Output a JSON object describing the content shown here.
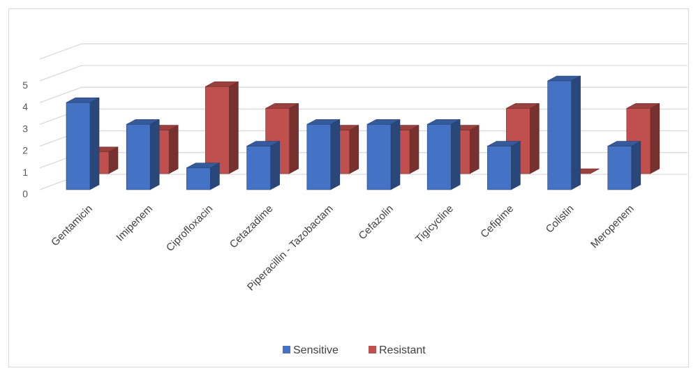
{
  "chart_data": {
    "type": "bar",
    "title": "",
    "xlabel": "",
    "ylabel": "",
    "categories": [
      "Gentamicin",
      "Imipenem",
      "Ciprofloxacin",
      "Cetazadime",
      "Piperacillin - Tazobactam",
      "Cefazolin",
      "Tigicycline",
      "Cefipime",
      "Colistin",
      "Meropenem"
    ],
    "series": [
      {
        "name": "Sensitive",
        "values": [
          4,
          3,
          1,
          2,
          3,
          3,
          3,
          2,
          5,
          2
        ],
        "color": "#4472C4"
      },
      {
        "name": "Resistant",
        "values": [
          1,
          2,
          4,
          3,
          2,
          2,
          2,
          3,
          0,
          3
        ],
        "color": "#C0504D"
      }
    ],
    "ylim": [
      0,
      5
    ],
    "yticks": [
      "0",
      "1",
      "2",
      "3",
      "4",
      "5"
    ],
    "grid": true,
    "legend_position": "bottom",
    "style": "3d-clustered-column"
  }
}
